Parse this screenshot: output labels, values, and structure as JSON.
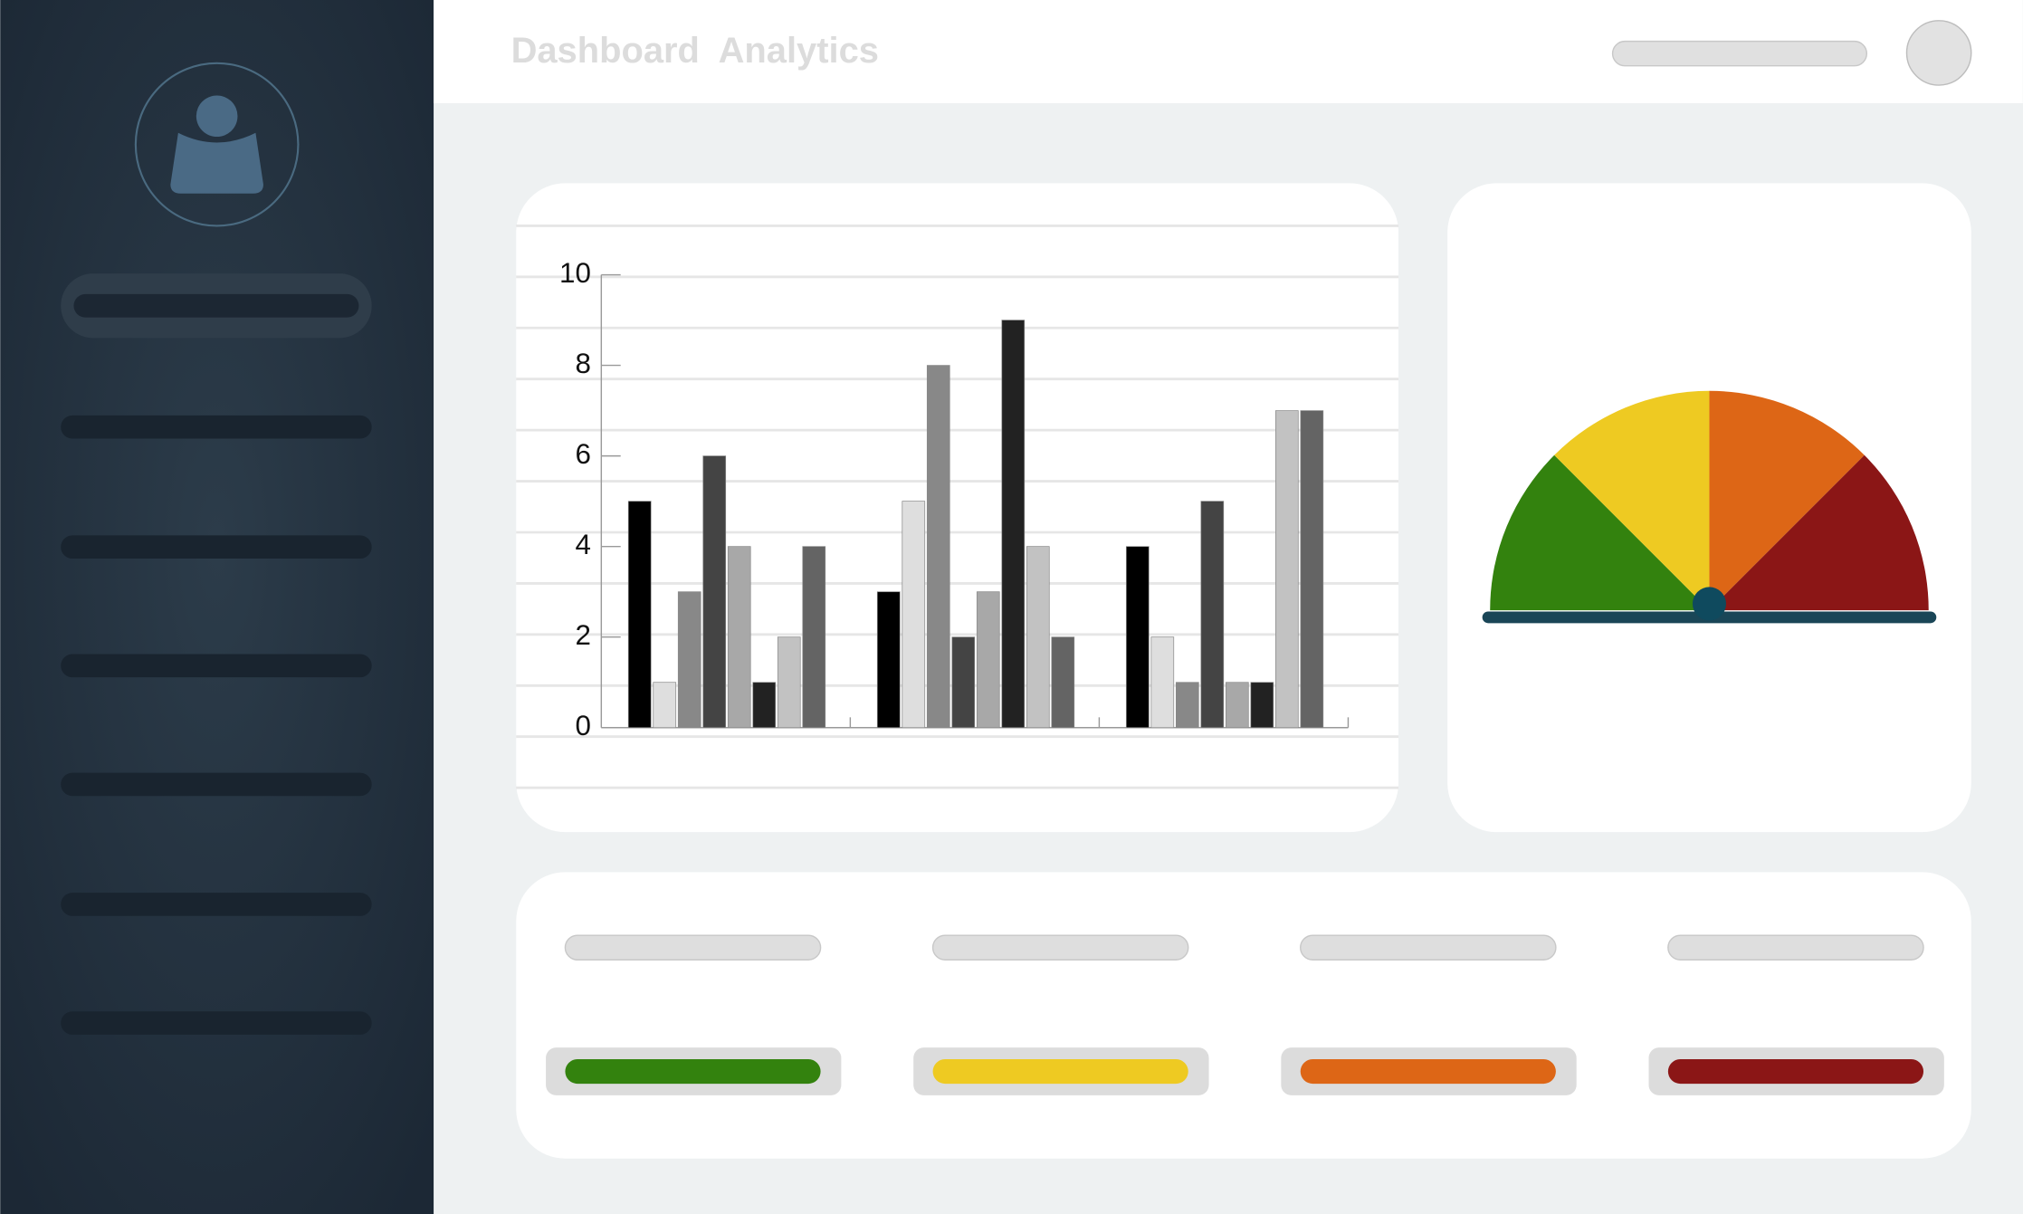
{
  "header": {
    "title": "Dashboard  Analytics"
  },
  "chart_data": {
    "type": "bar",
    "categories": [
      null,
      null,
      null
    ],
    "series": [
      {
        "color": "#000000",
        "values": [
          5,
          3,
          4
        ]
      },
      {
        "color": "#dedede",
        "values": [
          1,
          5,
          2
        ]
      },
      {
        "color": "#888888",
        "values": [
          3,
          8,
          1
        ]
      },
      {
        "color": "#444444",
        "values": [
          6,
          2,
          5
        ]
      },
      {
        "color": "#a8a8a8",
        "values": [
          4,
          3,
          1
        ]
      },
      {
        "color": "#222222",
        "values": [
          1,
          9,
          1
        ]
      },
      {
        "color": "#c2c2c2",
        "values": [
          2,
          4,
          7
        ]
      },
      {
        "color": "#646464",
        "values": [
          4,
          2,
          7
        ]
      }
    ],
    "ylim": [
      0,
      10
    ],
    "yticks": [
      0,
      2,
      4,
      6,
      8,
      10
    ],
    "grid": true
  }
}
